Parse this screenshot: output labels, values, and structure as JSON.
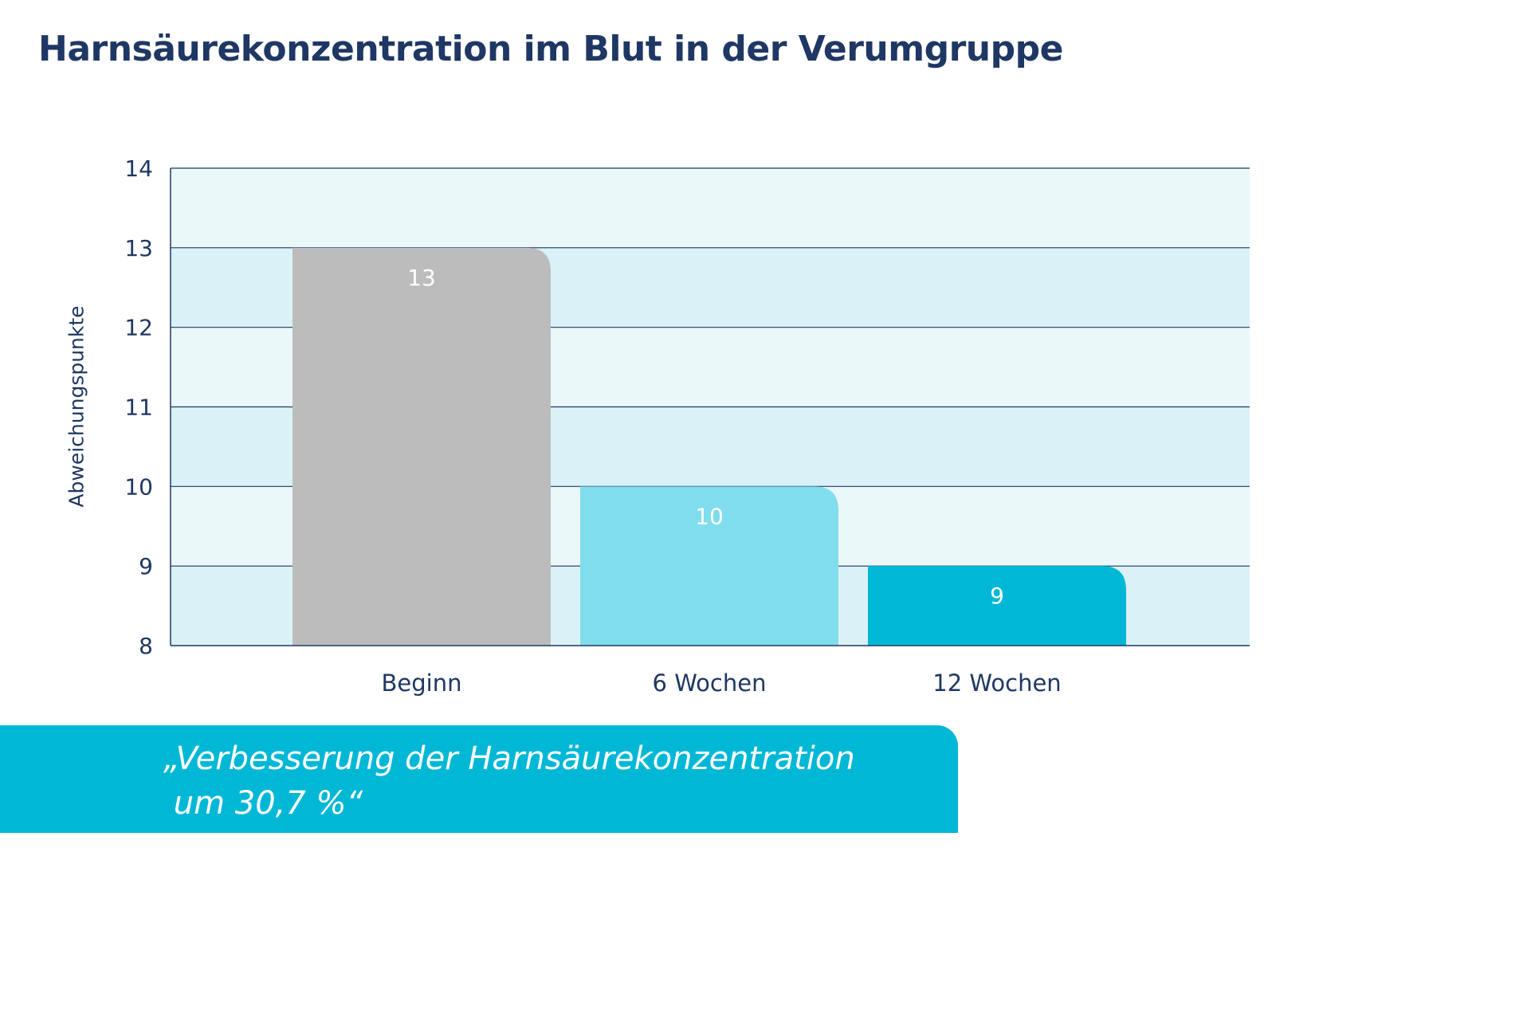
{
  "title": "Harnsäurekonzentration im Blut in der Verumgruppe",
  "chart_data": {
    "type": "bar",
    "categories": [
      "Beginn",
      "6 Wochen",
      "12 Wochen"
    ],
    "values": [
      13,
      10,
      9
    ],
    "data_labels": [
      "13",
      "10",
      "9"
    ],
    "bar_colors": [
      "#bcbcbc",
      "#80dded",
      "#00b8d6"
    ],
    "title": "Harnsäurekonzentration im Blut in der Verumgruppe",
    "xlabel": "",
    "ylabel": "Abweichungspunkte",
    "ylim": [
      8,
      14
    ],
    "yticks": [
      8,
      9,
      10,
      11,
      12,
      13,
      14
    ],
    "grid": true,
    "band_colors": [
      "#daf2f7",
      "#eaf8fa"
    ],
    "gridline_color": "#1f3764",
    "text_color": "#1f3764",
    "legend": "none"
  },
  "quote": {
    "text": "„Verbesserung der Harnsäurekonzentration\n um 30,7 %“",
    "background": "#00b8d6"
  }
}
